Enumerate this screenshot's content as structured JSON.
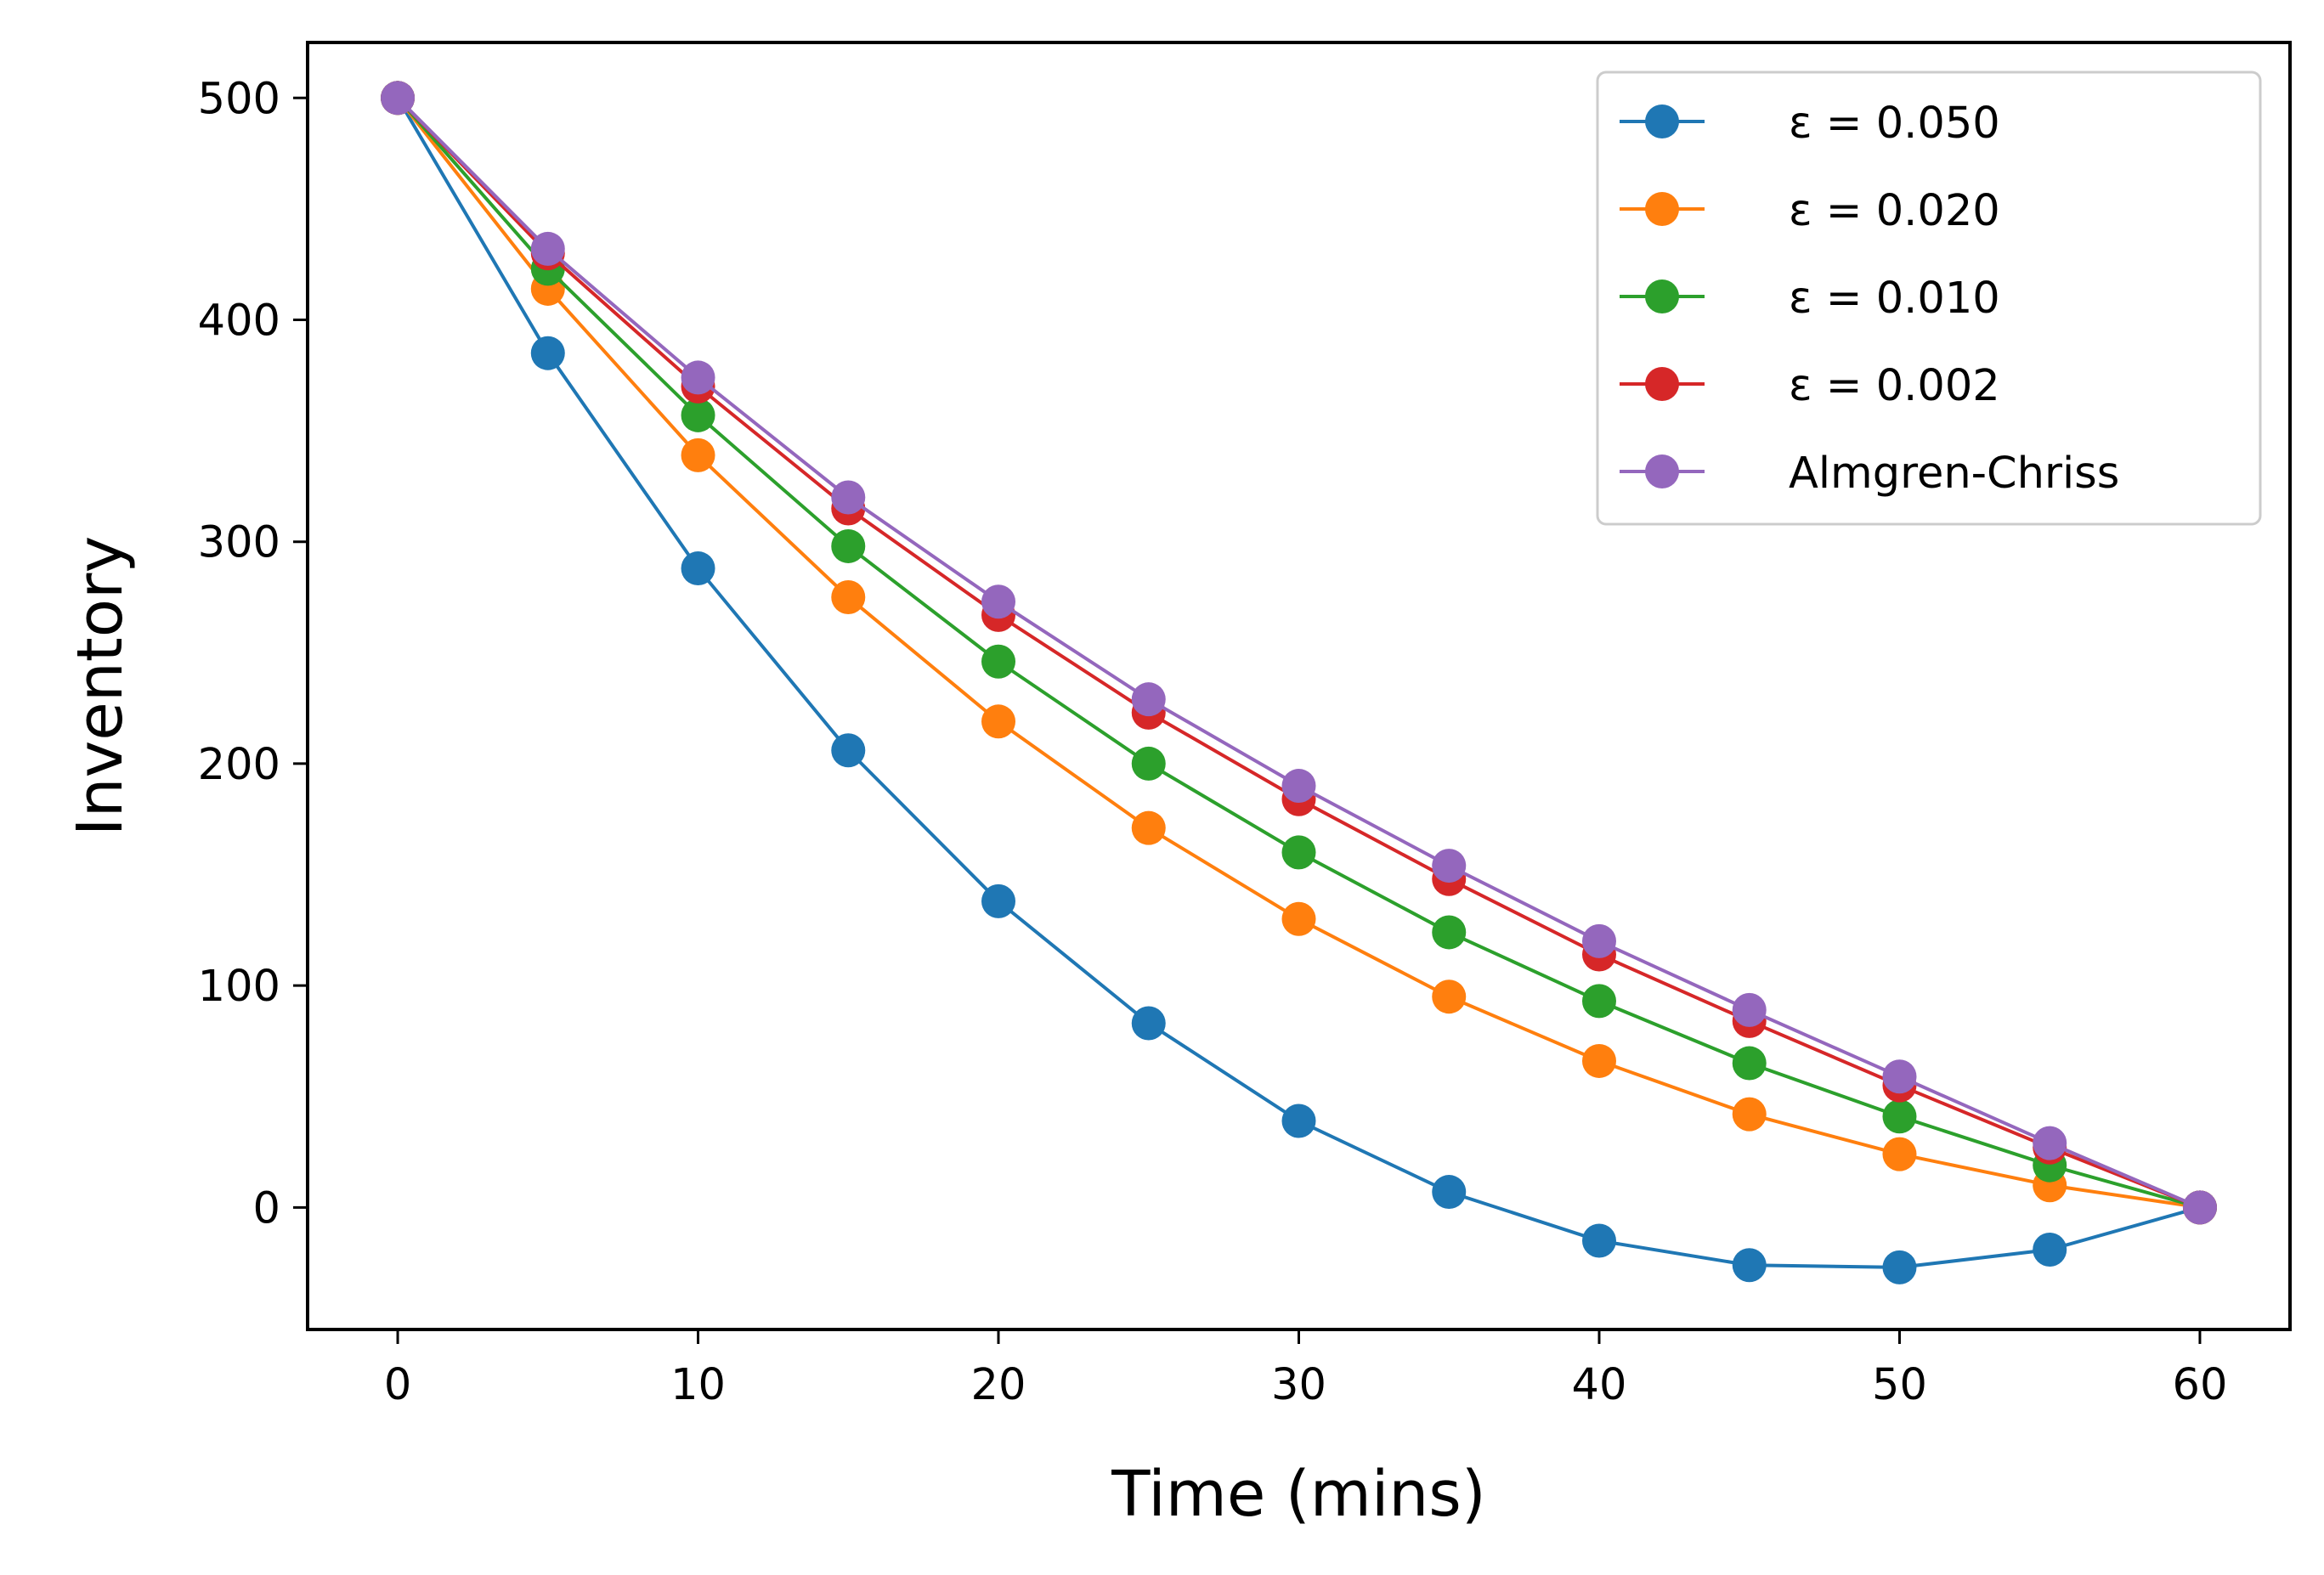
{
  "chart_data": {
    "type": "line",
    "title": "",
    "xlabel": "Time (mins)",
    "ylabel": "Inventory",
    "xlim": [
      -3,
      63
    ],
    "ylim": [
      -55,
      525
    ],
    "xticks": [
      0,
      10,
      20,
      30,
      40,
      50,
      60
    ],
    "yticks": [
      0,
      100,
      200,
      300,
      400,
      500
    ],
    "x": [
      0,
      5,
      10,
      15,
      20,
      25,
      30,
      35,
      40,
      45,
      50,
      55,
      60
    ],
    "grid": false,
    "legend_position": "top-right",
    "series": [
      {
        "name": "ε = 0.050",
        "color": "#1f77b4",
        "values": [
          500,
          385,
          288,
          206,
          138,
          83,
          39,
          7,
          -15,
          -26,
          -27,
          -19,
          0
        ]
      },
      {
        "name": "ε = 0.020",
        "color": "#ff7f0e",
        "values": [
          500,
          414,
          339,
          275,
          219,
          171,
          130,
          95,
          66,
          42,
          24,
          10,
          0
        ]
      },
      {
        "name": "ε = 0.010",
        "color": "#2ca02c",
        "values": [
          500,
          423,
          357,
          298,
          246,
          200,
          160,
          124,
          93,
          65,
          41,
          19,
          0
        ]
      },
      {
        "name": "ε = 0.002",
        "color": "#d62728",
        "values": [
          500,
          430,
          370,
          315,
          267,
          223,
          184,
          148,
          114,
          84,
          55,
          27,
          0
        ]
      },
      {
        "name": "Almgren-Chriss",
        "color": "#9467bd",
        "values": [
          500,
          432,
          374,
          320,
          273,
          229,
          190,
          154,
          120,
          89,
          59,
          29,
          0
        ]
      }
    ]
  }
}
